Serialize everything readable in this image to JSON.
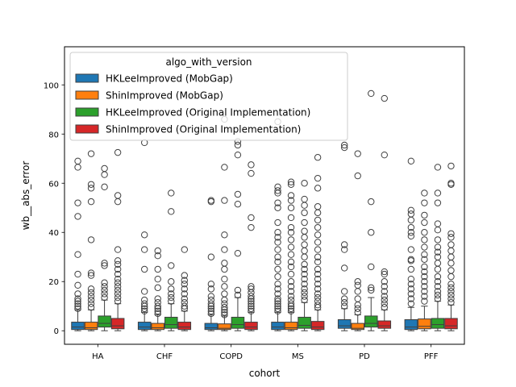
{
  "chart_data": {
    "type": "boxplot",
    "xlabel": "cohort",
    "ylabel": "wb__abs_error",
    "ylim": [
      -5.5,
      115.5
    ],
    "yticks": [
      0,
      20,
      40,
      60,
      80,
      100
    ],
    "categories": [
      "HA",
      "CHF",
      "COPD",
      "MS",
      "PD",
      "PFF"
    ],
    "legend": {
      "title": "algo_with_version",
      "placement": "upper-left"
    },
    "series": [
      {
        "name": "HKLeeImproved (MobGap)",
        "color": "#1f77b4",
        "boxes": [
          {
            "q1": 0.5,
            "median": 1.5,
            "q3": 3.5,
            "whislo": 0,
            "whishi": 8.5,
            "fliers": [
              9,
              10,
              11,
              12,
              13,
              15,
              18.5,
              23,
              31,
              46.5,
              52,
              66.5,
              69
            ]
          },
          {
            "q1": 0.5,
            "median": 1.5,
            "q3": 3.5,
            "whislo": 0,
            "whishi": 7.5,
            "fliers": [
              8,
              9,
              10,
              11,
              12.5,
              16,
              25,
              33,
              39,
              76.5
            ]
          },
          {
            "q1": 0.5,
            "median": 1.2,
            "q3": 3,
            "whislo": 0,
            "whishi": 6.5,
            "fliers": [
              7,
              8,
              9,
              10,
              11,
              12.5,
              14,
              17,
              19,
              30,
              52.5,
              53
            ]
          },
          {
            "q1": 0.5,
            "median": 1.5,
            "q3": 3.5,
            "whislo": 0,
            "whishi": 7.5,
            "fliers": [
              8,
              9,
              10,
              11,
              12,
              13,
              15,
              17,
              19,
              22,
              25,
              28,
              30,
              33,
              36,
              38,
              40,
              44,
              50,
              52,
              56,
              57,
              58.5,
              85
            ]
          },
          {
            "q1": 1,
            "median": 2,
            "q3": 4.5,
            "whislo": 0,
            "whishi": 9,
            "fliers": [
              10,
              11.5,
              13,
              16,
              25.5,
              33,
              35,
              74.5,
              75.5
            ]
          },
          {
            "q1": 0.5,
            "median": 1.5,
            "q3": 4.5,
            "whislo": 0,
            "whishi": 9.5,
            "fliers": [
              11,
              13,
              15,
              17,
              19,
              21,
              25,
              28.5,
              29,
              33,
              38.5,
              40,
              42,
              45,
              47.5,
              49,
              69
            ]
          }
        ]
      },
      {
        "name": "ShinImproved (MobGap)",
        "color": "#ff7f0e",
        "boxes": [
          {
            "q1": 0.5,
            "median": 1.2,
            "q3": 3.5,
            "whislo": 0,
            "whishi": 8.5,
            "fliers": [
              9.5,
              11,
              12.5,
              14,
              15.5,
              17,
              22.5,
              23.5,
              37,
              52.5,
              58,
              59.5,
              72
            ]
          },
          {
            "q1": 0.5,
            "median": 1.2,
            "q3": 3,
            "whislo": 0,
            "whishi": 6.5,
            "fliers": [
              7,
              8,
              9,
              10,
              11.5,
              13,
              17.5,
              21,
              25,
              30.5,
              32.5
            ]
          },
          {
            "q1": 0.5,
            "median": 1,
            "q3": 2.8,
            "whislo": 0,
            "whishi": 6,
            "fliers": [
              6.5,
              7.5,
              8.5,
              9.5,
              11,
              12.5,
              15,
              18,
              21,
              25,
              27.5,
              33,
              39,
              53,
              66.5,
              86
            ]
          },
          {
            "q1": 0.5,
            "median": 1.2,
            "q3": 3.5,
            "whislo": 0,
            "whishi": 7.5,
            "fliers": [
              8,
              9,
              10,
              11,
              12.5,
              14,
              16,
              18,
              20,
              23,
              26,
              28,
              31,
              34,
              37,
              40,
              42,
              46,
              50,
              53,
              55,
              59.5,
              60.5
            ]
          },
          {
            "q1": 0.5,
            "median": 1,
            "q3": 3,
            "whislo": 0,
            "whishi": 6.5,
            "fliers": [
              7.5,
              9,
              10.5,
              13,
              16,
              18.5,
              20,
              63,
              72
            ]
          },
          {
            "q1": 0.8,
            "median": 1.8,
            "q3": 4.8,
            "whislo": 0,
            "whishi": 10,
            "fliers": [
              12,
              14,
              16,
              18,
              20,
              22,
              24,
              26,
              29,
              31,
              34,
              37,
              40,
              44,
              47,
              52,
              56
            ]
          }
        ]
      },
      {
        "name": "HKLeeImproved (Original Implementation)",
        "color": "#2ca02c",
        "boxes": [
          {
            "q1": 1.5,
            "median": 3,
            "q3": 6,
            "whislo": 0,
            "whishi": 12.5,
            "fliers": [
              13.5,
              15,
              16.5,
              18,
              19.5,
              26.5,
              27.5,
              58.5,
              63.5,
              66
            ]
          },
          {
            "q1": 1,
            "median": 2.5,
            "q3": 5.5,
            "whislo": 0,
            "whishi": 11,
            "fliers": [
              12,
              13.5,
              15,
              17,
              20,
              26.5,
              48.5,
              56
            ]
          },
          {
            "q1": 1,
            "median": 2.5,
            "q3": 5.5,
            "whislo": 0,
            "whishi": 13.5,
            "fliers": [
              14.5,
              16.5,
              31.5,
              51.5,
              55.5,
              71.5,
              75.5,
              77
            ]
          },
          {
            "q1": 1,
            "median": 2.2,
            "q3": 5.5,
            "whislo": 0,
            "whishi": 11.5,
            "fliers": [
              12.5,
              14,
              15.5,
              17,
              19,
              21,
              23,
              25,
              27,
              30,
              32.5,
              35,
              38,
              40.5,
              44,
              48,
              51,
              53.5,
              60
            ]
          },
          {
            "q1": 1.5,
            "median": 3,
            "q3": 6,
            "whislo": 0,
            "whishi": 13.5,
            "fliers": [
              16.5,
              17.5,
              26,
              40,
              52.5,
              96.5
            ]
          },
          {
            "q1": 1,
            "median": 2.5,
            "q3": 5,
            "whislo": 0,
            "whishi": 12,
            "fliers": [
              13,
              14.5,
              16,
              18,
              20,
              22,
              25,
              27.5,
              30,
              32,
              34,
              37,
              41,
              43.5,
              52,
              56,
              66.5
            ]
          }
        ]
      },
      {
        "name": "ShinImproved (Original Implementation)",
        "color": "#d62728",
        "boxes": [
          {
            "q1": 0.8,
            "median": 2,
            "q3": 5,
            "whislo": 0,
            "whishi": 11,
            "fliers": [
              12,
              13.5,
              15,
              16.5,
              18,
              19.5,
              21,
              23,
              25,
              27,
              28.5,
              33,
              52.5,
              55,
              72.5
            ]
          },
          {
            "q1": 0.5,
            "median": 1.5,
            "q3": 3.5,
            "whislo": 0,
            "whishi": 8,
            "fliers": [
              9,
              10,
              11.5,
              13,
              15,
              17,
              19,
              20.5,
              22.5,
              33
            ]
          },
          {
            "q1": 0.5,
            "median": 1.5,
            "q3": 3.5,
            "whislo": 0,
            "whishi": 7.5,
            "fliers": [
              8,
              9,
              10,
              11,
              12,
              13,
              14,
              15.5,
              17,
              18,
              42,
              46,
              64,
              67.5
            ]
          },
          {
            "q1": 0.5,
            "median": 1.5,
            "q3": 3.8,
            "whislo": 0,
            "whishi": 8.5,
            "fliers": [
              9.5,
              10.5,
              12,
              13.5,
              15,
              17,
              19,
              21,
              23,
              25,
              28,
              30,
              33,
              36,
              39,
              42,
              45,
              48,
              50.5,
              58,
              62,
              70.5
            ]
          },
          {
            "q1": 1,
            "median": 2,
            "q3": 4,
            "whislo": 0,
            "whishi": 8.5,
            "fliers": [
              9.5,
              11,
              12.5,
              14,
              16,
              18,
              20,
              23,
              24,
              71.5,
              94.5
            ]
          },
          {
            "q1": 0.8,
            "median": 2,
            "q3": 5,
            "whislo": 0,
            "whishi": 10.5,
            "fliers": [
              11.5,
              13,
              14.5,
              16,
              17.5,
              19,
              22,
              24.5,
              27.5,
              30,
              32.5,
              35,
              38,
              39.5,
              59.5,
              60,
              67
            ]
          }
        ]
      }
    ]
  }
}
